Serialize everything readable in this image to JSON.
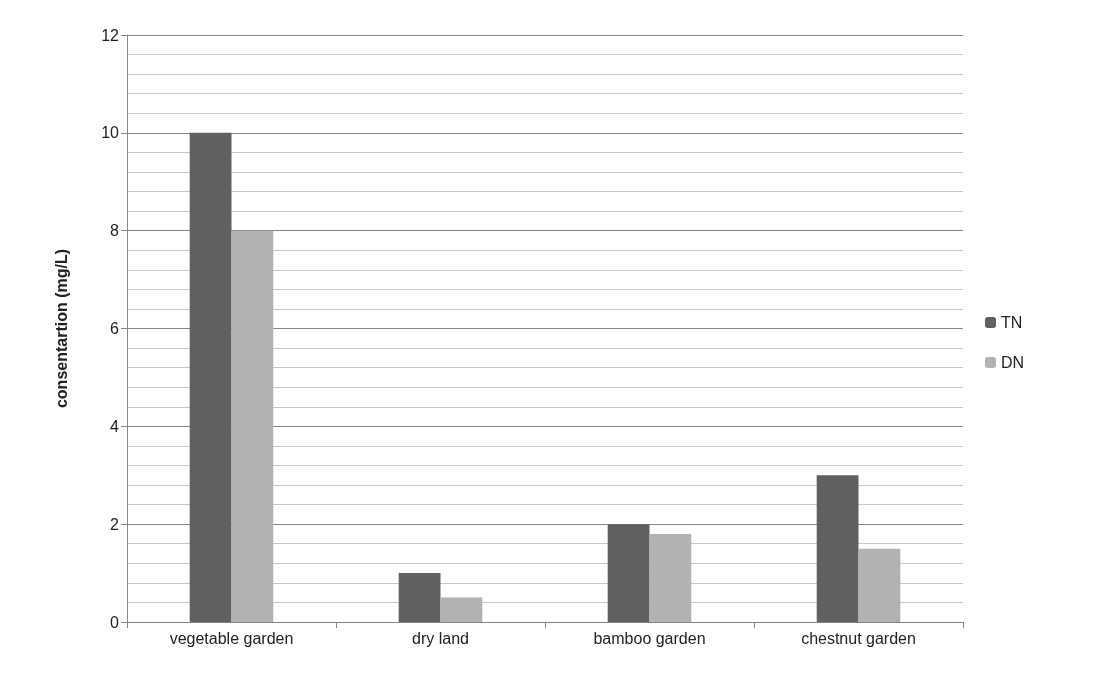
{
  "chart_data": {
    "type": "bar",
    "ylabel": "consentartion (mg/L)",
    "categories": [
      "vegetable garden",
      "dry land",
      "bamboo garden",
      "chestnut garden"
    ],
    "series": [
      {
        "name": "TN",
        "color": "#606060",
        "values": [
          10,
          1,
          2,
          3
        ]
      },
      {
        "name": "DN",
        "color": "#b2b2b2",
        "values": [
          8,
          0.5,
          1.8,
          1.5
        ]
      }
    ],
    "ylim": [
      0,
      12
    ],
    "yticks": [
      0,
      2,
      4,
      6,
      8,
      10,
      12
    ],
    "grid": true,
    "legend": "right"
  }
}
